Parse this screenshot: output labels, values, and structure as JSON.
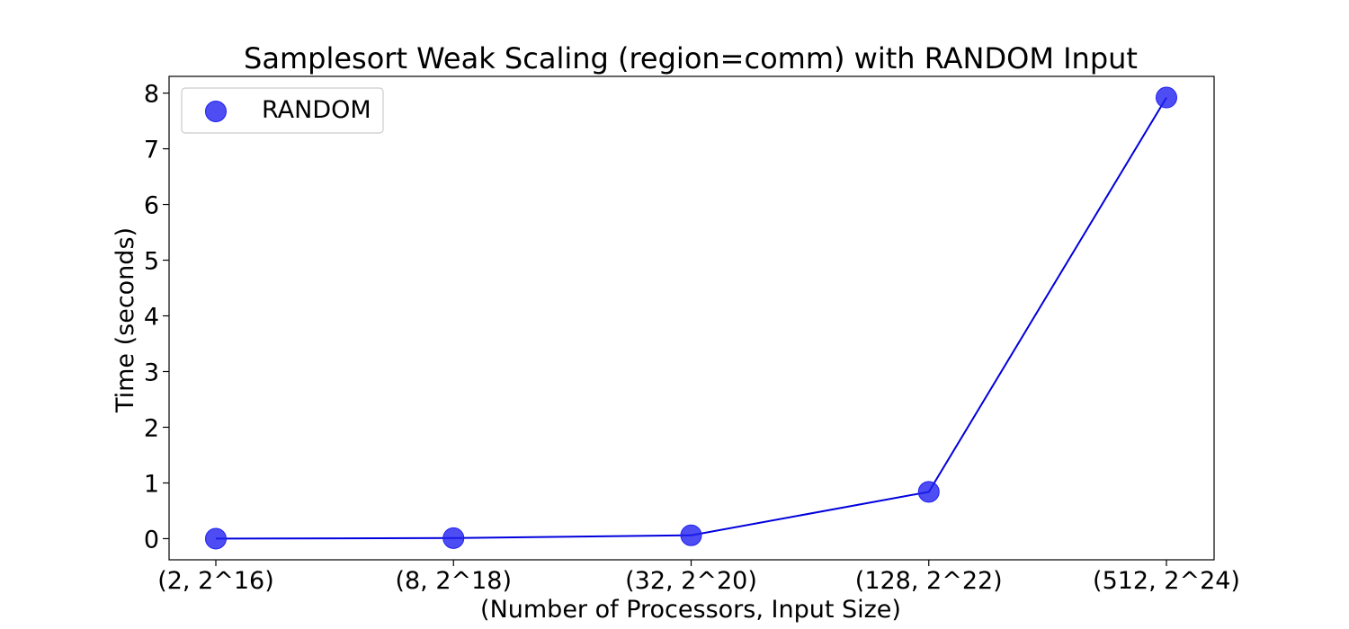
{
  "chart_data": {
    "type": "scatter",
    "title": "Samplesort Weak Scaling (region=comm) with RANDOM Input",
    "xlabel": "(Number of Processors, Input Size)",
    "ylabel": "Time (seconds)",
    "categories": [
      "(2, 2^16)",
      "(8, 2^18)",
      "(32, 2^20)",
      "(128, 2^22)",
      "(512, 2^24)"
    ],
    "series": [
      {
        "name": "RANDOM",
        "values": [
          0.0,
          0.01,
          0.06,
          0.84,
          7.92
        ],
        "marker_color": "#2020f0",
        "line_color": "#0000dd"
      }
    ],
    "yticks": [
      0,
      1,
      2,
      3,
      4,
      5,
      6,
      7,
      8
    ],
    "ylim": [
      -0.38,
      8.3
    ],
    "grid": false,
    "legend_position": "top-left"
  }
}
